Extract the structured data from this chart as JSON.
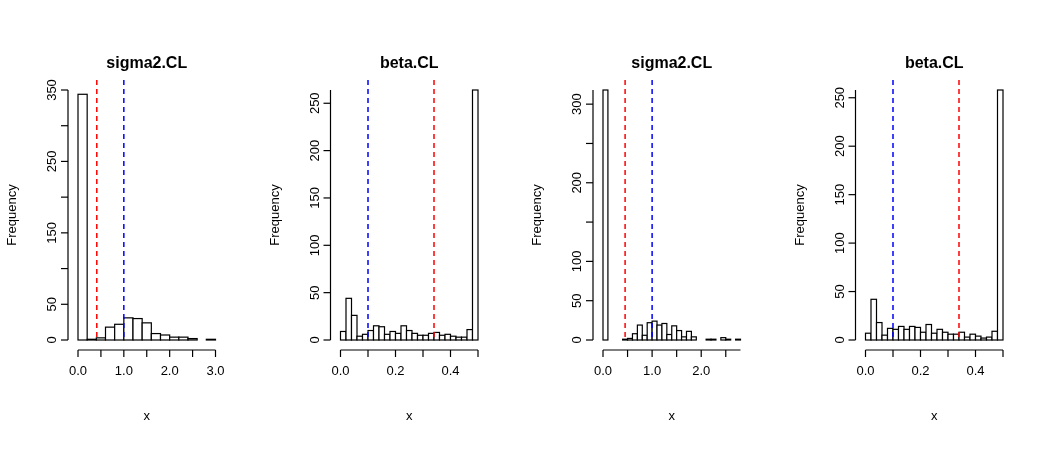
{
  "chart_data": [
    {
      "type": "histogram",
      "title": "sigma2.CL",
      "xlabel": "x",
      "ylabel": "Frequency",
      "bins": [
        0,
        0.2,
        0.4,
        0.6,
        0.8,
        1.0,
        1.2,
        1.4,
        1.6,
        1.8,
        2.0,
        2.2,
        2.4,
        2.6,
        2.8,
        3.0
      ],
      "values": [
        344,
        1,
        3,
        18,
        22,
        31,
        30,
        24,
        9,
        7,
        4,
        4,
        2,
        0,
        1
      ],
      "color": "#ffffff",
      "xlim": [
        0,
        3
      ],
      "ylim": [
        0,
        350
      ],
      "xticks": [
        {
          "value": 0,
          "label": "0.0"
        },
        {
          "value": 0.5,
          "label": null
        },
        {
          "value": 1,
          "label": "1.0"
        },
        {
          "value": 1.5,
          "label": null
        },
        {
          "value": 2,
          "label": "2.0"
        },
        {
          "value": 2.5,
          "label": null
        },
        {
          "value": 3,
          "label": "3.0"
        }
      ],
      "yticks": [
        0,
        50,
        {
          "value": 100,
          "label": null
        },
        150,
        {
          "value": 200,
          "label": null
        },
        250,
        {
          "value": 300,
          "label": null
        },
        350
      ],
      "ref_lines": [
        {
          "axis": "x",
          "value": 0.41,
          "color": "#ff0000",
          "line_style": "dashed"
        },
        {
          "axis": "x",
          "value": 1.0,
          "color": "#0000ff",
          "line_style": "dashed"
        }
      ],
      "grid": false
    },
    {
      "type": "histogram",
      "title": "beta.CL",
      "xlabel": "x",
      "ylabel": "Frequency",
      "bins": [
        0,
        0.02,
        0.04,
        0.06,
        0.08,
        0.1,
        0.12,
        0.14,
        0.16,
        0.18,
        0.2,
        0.22,
        0.24,
        0.26,
        0.28,
        0.3,
        0.32,
        0.34,
        0.36,
        0.38,
        0.4,
        0.42,
        0.44,
        0.46,
        0.48,
        0.5
      ],
      "values": [
        9,
        44,
        26,
        4,
        6,
        10,
        15,
        14,
        6,
        9,
        7,
        15,
        10,
        7,
        5,
        5,
        7,
        8,
        5,
        6,
        4,
        3,
        3,
        11,
        264
      ],
      "color": "#ffffff",
      "xlim": [
        0,
        0.5
      ],
      "ylim": [
        0,
        264
      ],
      "xticks": [
        {
          "value": 0,
          "label": "0.0"
        },
        {
          "value": 0.1,
          "label": null
        },
        {
          "value": 0.2,
          "label": "0.2"
        },
        {
          "value": 0.3,
          "label": null
        },
        {
          "value": 0.4,
          "label": "0.4"
        },
        {
          "value": 0.5,
          "label": null
        }
      ],
      "yticks": [
        0,
        50,
        100,
        150,
        200,
        250
      ],
      "ref_lines": [
        {
          "axis": "x",
          "value": 0.1,
          "color": "#0000ff",
          "line_style": "dashed"
        },
        {
          "axis": "x",
          "value": 0.34,
          "color": "#ff0000",
          "line_style": "dashed"
        }
      ],
      "grid": false
    },
    {
      "type": "histogram",
      "title": "sigma2.CL",
      "xlabel": "x",
      "ylabel": "Frequency",
      "bins": [
        0,
        0.1,
        0.2,
        0.3,
        0.4,
        0.5,
        0.6,
        0.7,
        0.8,
        0.9,
        1.0,
        1.1,
        1.2,
        1.3,
        1.4,
        1.5,
        1.6,
        1.7,
        1.8,
        1.9,
        2.0,
        2.1,
        2.2,
        2.3,
        2.4,
        2.5,
        2.6,
        2.7,
        2.8
      ],
      "values": [
        318,
        0,
        0,
        0,
        1,
        2,
        8,
        19,
        6,
        22,
        24,
        19,
        21,
        7,
        18,
        12,
        4,
        11,
        4,
        0,
        0,
        1,
        1,
        0,
        3,
        1,
        0,
        1
      ],
      "color": "#ffffff",
      "xlim": [
        0,
        2.8
      ],
      "ylim": [
        0,
        318
      ],
      "xticks": [
        {
          "value": 0,
          "label": "0.0"
        },
        {
          "value": 0.5,
          "label": null
        },
        {
          "value": 1,
          "label": "1.0"
        },
        {
          "value": 1.5,
          "label": null
        },
        {
          "value": 2,
          "label": "2.0"
        },
        {
          "value": 2.5,
          "label": null
        }
      ],
      "yticks": [
        0,
        50,
        100,
        {
          "value": 150,
          "label": null
        },
        200,
        {
          "value": 250,
          "label": null
        },
        300
      ],
      "ref_lines": [
        {
          "axis": "x",
          "value": 0.45,
          "color": "#ff0000",
          "line_style": "dashed"
        },
        {
          "axis": "x",
          "value": 1.0,
          "color": "#0000ff",
          "line_style": "dashed"
        }
      ],
      "grid": false
    },
    {
      "type": "histogram",
      "title": "beta.CL",
      "xlabel": "x",
      "ylabel": "Frequency",
      "bins": [
        0,
        0.02,
        0.04,
        0.06,
        0.08,
        0.1,
        0.12,
        0.14,
        0.16,
        0.18,
        0.2,
        0.22,
        0.24,
        0.26,
        0.28,
        0.3,
        0.32,
        0.34,
        0.36,
        0.38,
        0.4,
        0.42,
        0.44,
        0.46,
        0.48,
        0.5
      ],
      "values": [
        7,
        42,
        18,
        5,
        12,
        11,
        14,
        11,
        14,
        13,
        8,
        16,
        7,
        11,
        8,
        6,
        6,
        8,
        3,
        6,
        4,
        2,
        3,
        9,
        258
      ],
      "color": "#ffffff",
      "xlim": [
        0,
        0.5
      ],
      "ylim": [
        0,
        258
      ],
      "xticks": [
        {
          "value": 0,
          "label": "0.0"
        },
        {
          "value": 0.1,
          "label": null
        },
        {
          "value": 0.2,
          "label": "0.2"
        },
        {
          "value": 0.3,
          "label": null
        },
        {
          "value": 0.4,
          "label": "0.4"
        },
        {
          "value": 0.5,
          "label": null
        }
      ],
      "yticks": [
        0,
        50,
        100,
        150,
        200,
        250
      ],
      "ref_lines": [
        {
          "axis": "x",
          "value": 0.1,
          "color": "#0000ff",
          "line_style": "dashed"
        },
        {
          "axis": "x",
          "value": 0.34,
          "color": "#ff0000",
          "line_style": "dashed"
        }
      ],
      "grid": false
    }
  ]
}
